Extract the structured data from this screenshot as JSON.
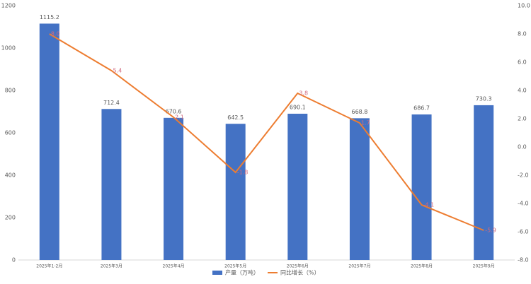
{
  "chart_data": {
    "type": "bar-line",
    "categories": [
      "2025年1-2月",
      "2025年3月",
      "2025年4月",
      "2025年5月",
      "2025年6月",
      "2025年7月",
      "2025年8月",
      "2025年9月"
    ],
    "series": [
      {
        "name": "产量（万吨）",
        "type": "bar",
        "color": "#4472c4",
        "values": [
          1115.2,
          712.4,
          670.6,
          642.5,
          690.1,
          668.8,
          686.7,
          730.3
        ]
      },
      {
        "name": "同比增长（%）",
        "type": "line",
        "axis": "y2",
        "color": "#ed7d31",
        "values": [
          8.0,
          5.4,
          2.1,
          -1.8,
          3.8,
          1.7,
          -4.1,
          -5.9
        ],
        "value_labels": [
          "8.0",
          "5.4",
          "2.1",
          "-1.8",
          "3.8",
          "1.7",
          "-4.1",
          "-5.9"
        ]
      }
    ],
    "ylim": [
      0,
      1200
    ],
    "yticks": [
      0,
      200,
      400,
      600,
      800,
      1000,
      1200
    ],
    "y2lim": [
      -8,
      10
    ],
    "y2ticks": [
      {
        "value": -8,
        "label": "-8.0"
      },
      {
        "value": -6,
        "label": "-6.0"
      },
      {
        "value": -4,
        "label": "-4.0"
      },
      {
        "value": -2,
        "label": "-2.0"
      },
      {
        "value": 0,
        "label": "0.0"
      },
      {
        "value": 2,
        "label": "2.0"
      },
      {
        "value": 4,
        "label": "4.0"
      },
      {
        "value": 6,
        "label": "6.0"
      },
      {
        "value": 8,
        "label": "8.0"
      },
      {
        "value": 10,
        "label": "10.0"
      }
    ],
    "grid": false,
    "legend": "bottom"
  }
}
